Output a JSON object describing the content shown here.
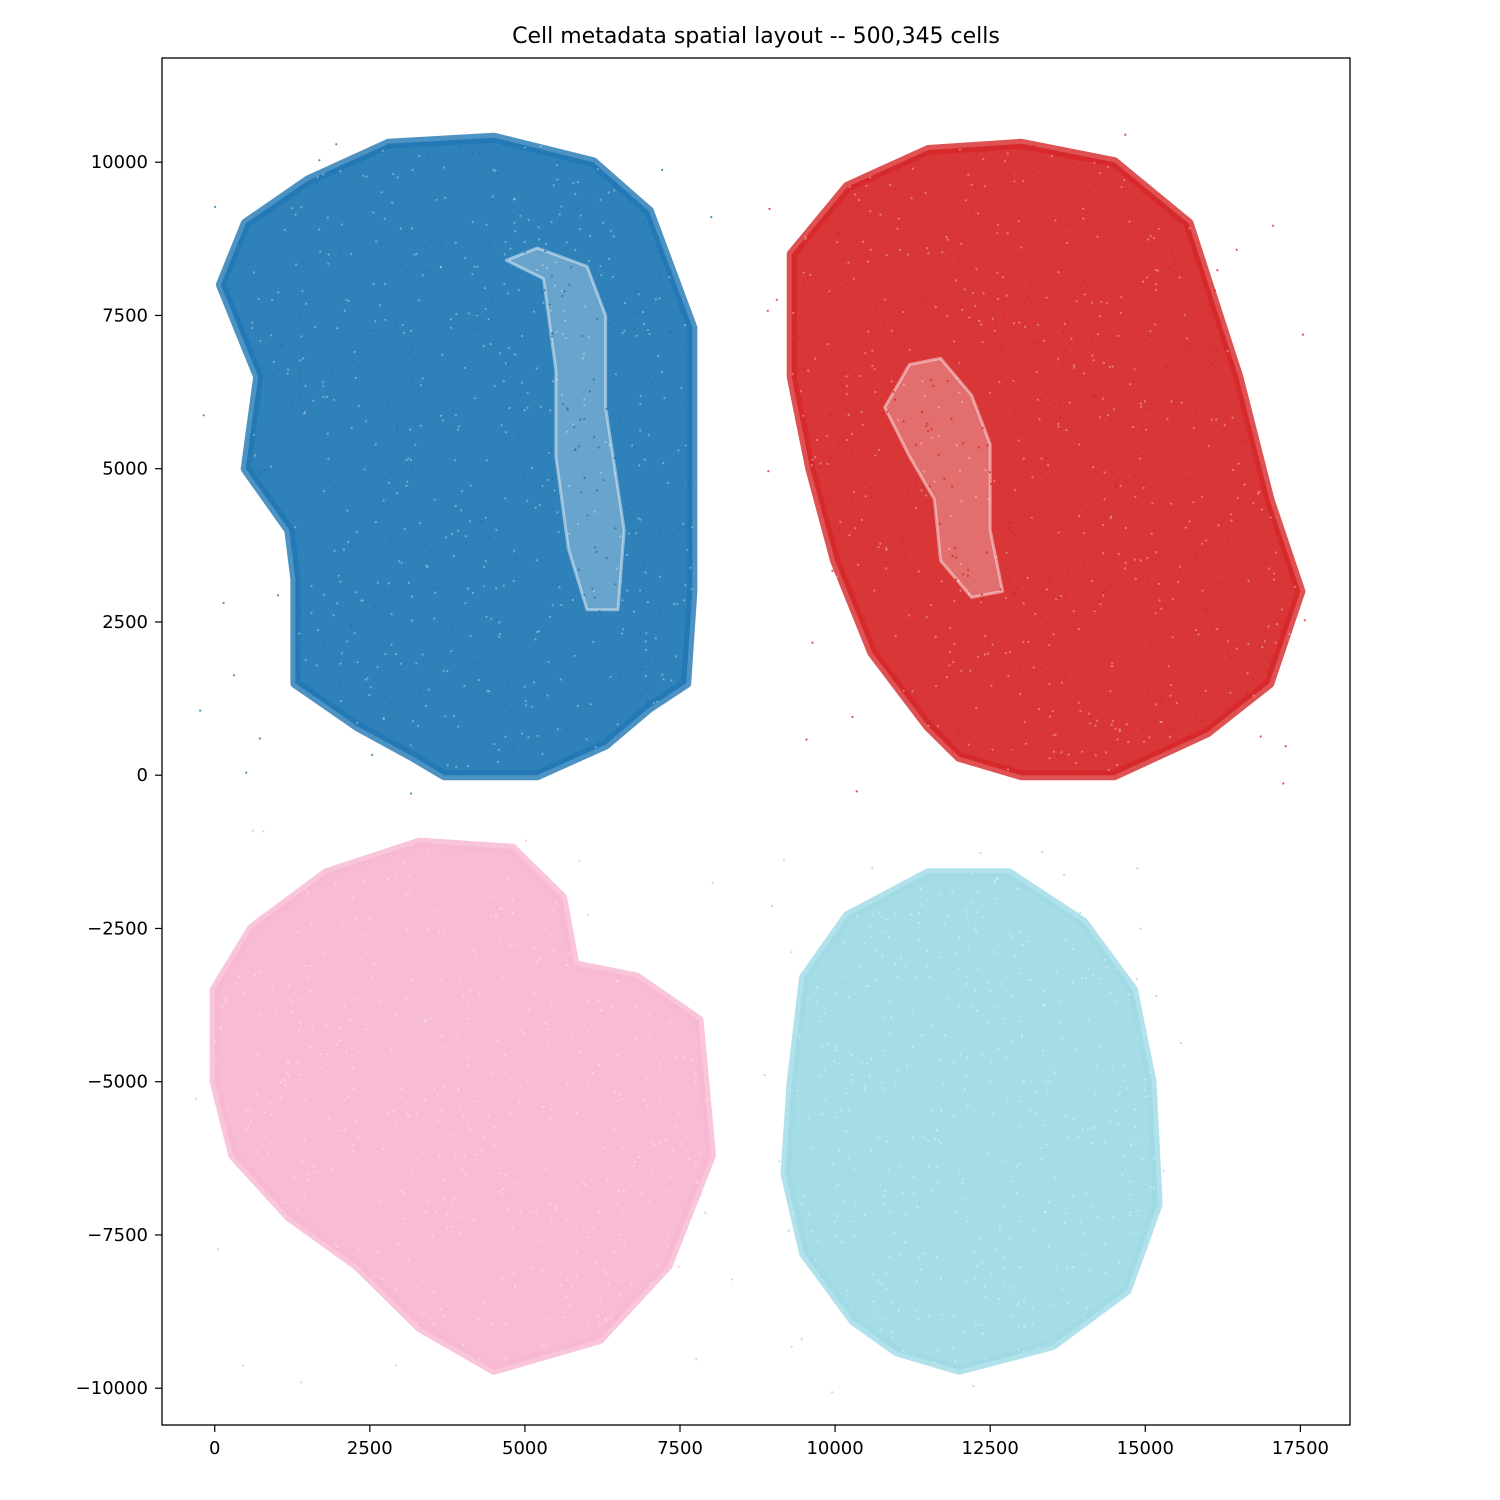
{
  "chart_data": {
    "type": "scatter",
    "title": "Cell metadata spatial layout -- 500,345 cells",
    "xlabel": "",
    "ylabel": "",
    "xlim": [
      -850,
      18300
    ],
    "ylim": [
      -10600,
      11700
    ],
    "xticks": [
      0,
      2500,
      5000,
      7500,
      10000,
      12500,
      15000,
      17500
    ],
    "yticks": [
      -10000,
      -7500,
      -5000,
      -2500,
      0,
      2500,
      5000,
      7500,
      10000
    ],
    "xtick_labels": [
      "0",
      "2500",
      "5000",
      "7500",
      "10000",
      "12500",
      "15000",
      "17500"
    ],
    "ytick_labels": [
      "−10000",
      "−7500",
      "−5000",
      "−2500",
      "0",
      "2500",
      "5000",
      "7500",
      "10000"
    ],
    "grid": false,
    "legend": "none",
    "point_size_note": "tiny semi-transparent dots",
    "series": [
      {
        "color": "#1f77b4",
        "outline": [
          [
            3700,
            0
          ],
          [
            5200,
            0
          ],
          [
            6300,
            500
          ],
          [
            7000,
            1100
          ],
          [
            7600,
            1500
          ],
          [
            7700,
            3000
          ],
          [
            7700,
            7300
          ],
          [
            7000,
            9200
          ],
          [
            6100,
            10000
          ],
          [
            4500,
            10400
          ],
          [
            2800,
            10300
          ],
          [
            1500,
            9700
          ],
          [
            500,
            9000
          ],
          [
            100,
            8000
          ],
          [
            700,
            6500
          ],
          [
            500,
            5000
          ],
          [
            1200,
            4000
          ],
          [
            1300,
            3200
          ],
          [
            1300,
            1500
          ],
          [
            2300,
            800
          ],
          [
            3200,
            300
          ]
        ],
        "inner_outline": [
          [
            4700,
            8400
          ],
          [
            5300,
            8100
          ],
          [
            5500,
            6600
          ],
          [
            5500,
            5200
          ],
          [
            5700,
            3700
          ],
          [
            6000,
            2700
          ],
          [
            6500,
            2700
          ],
          [
            6600,
            4000
          ],
          [
            6300,
            6000
          ],
          [
            6300,
            7500
          ],
          [
            6000,
            8300
          ],
          [
            5200,
            8600
          ]
        ]
      },
      {
        "color": "#d62728",
        "outline": [
          [
            13000,
            0
          ],
          [
            14500,
            0
          ],
          [
            16000,
            700
          ],
          [
            17000,
            1500
          ],
          [
            17500,
            3000
          ],
          [
            17000,
            4500
          ],
          [
            16500,
            6500
          ],
          [
            15700,
            9000
          ],
          [
            14500,
            10000
          ],
          [
            13000,
            10300
          ],
          [
            11500,
            10200
          ],
          [
            10200,
            9600
          ],
          [
            9300,
            8500
          ],
          [
            9300,
            6500
          ],
          [
            9600,
            5000
          ],
          [
            10000,
            3500
          ],
          [
            10600,
            2000
          ],
          [
            11500,
            800
          ],
          [
            12000,
            300
          ]
        ],
        "inner_outline": [
          [
            11200,
            6700
          ],
          [
            11700,
            6800
          ],
          [
            12200,
            6200
          ],
          [
            12500,
            5400
          ],
          [
            12500,
            4000
          ],
          [
            12700,
            3000
          ],
          [
            12200,
            2900
          ],
          [
            11700,
            3500
          ],
          [
            11600,
            4500
          ],
          [
            11200,
            5200
          ],
          [
            10800,
            6000
          ]
        ]
      },
      {
        "color": "#f7b6d2",
        "outline": [
          [
            4500,
            -9700
          ],
          [
            6200,
            -9200
          ],
          [
            7300,
            -8000
          ],
          [
            8000,
            -6200
          ],
          [
            7800,
            -4000
          ],
          [
            6800,
            -3300
          ],
          [
            5800,
            -3100
          ],
          [
            5600,
            -2000
          ],
          [
            4800,
            -1200
          ],
          [
            3300,
            -1100
          ],
          [
            1800,
            -1600
          ],
          [
            600,
            -2500
          ],
          [
            0,
            -3500
          ],
          [
            0,
            -5000
          ],
          [
            300,
            -6200
          ],
          [
            1200,
            -7200
          ],
          [
            2300,
            -8000
          ],
          [
            3300,
            -9000
          ]
        ],
        "inner_outline": []
      },
      {
        "color": "#9edae5",
        "outline": [
          [
            12000,
            -9700
          ],
          [
            13500,
            -9300
          ],
          [
            14700,
            -8400
          ],
          [
            15200,
            -7000
          ],
          [
            15100,
            -5000
          ],
          [
            14800,
            -3500
          ],
          [
            14000,
            -2400
          ],
          [
            12800,
            -1600
          ],
          [
            11500,
            -1600
          ],
          [
            10200,
            -2300
          ],
          [
            9500,
            -3300
          ],
          [
            9300,
            -5000
          ],
          [
            9200,
            -6500
          ],
          [
            9500,
            -7800
          ],
          [
            10300,
            -8900
          ],
          [
            11000,
            -9400
          ]
        ],
        "inner_outline": []
      }
    ]
  }
}
